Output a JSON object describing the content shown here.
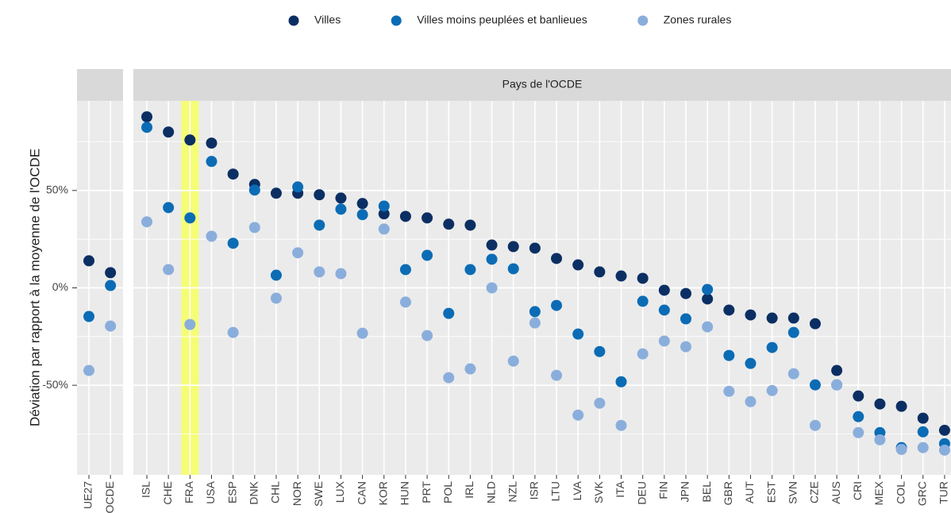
{
  "chart_data": {
    "type": "dot",
    "ylabel": "Déviation par rapport à la moyenne de l'OCDE",
    "ylim": [
      -96,
      96
    ],
    "yticks": [
      {
        "value": -50,
        "label": "-50%"
      },
      {
        "value": 0,
        "label": "0%"
      },
      {
        "value": 50,
        "label": "50%"
      }
    ],
    "minor_yticks": [
      -75,
      -25,
      25,
      75
    ],
    "grid": true,
    "legend_position": "top",
    "highlight": "FRA",
    "highlight_color": "#f6ff6a",
    "series": [
      {
        "name": "Villes",
        "color": "#0b2f63"
      },
      {
        "name": "Villes moins peuplées et banlieues",
        "color": "#0b6cb5"
      },
      {
        "name": "Zones rurales",
        "color": "#8aaedc"
      }
    ],
    "facets": [
      {
        "categories": [
          "UE27",
          "OCDE"
        ],
        "values": [
          [
            13.9,
            7.8
          ],
          [
            -14.7,
            1.2
          ],
          [
            -42.4,
            -19.6
          ]
        ]
      },
      {
        "title": "Pays de l'OCDE",
        "categories": [
          "ISL",
          "CHE",
          "FRA",
          "USA",
          "ESP",
          "DNK",
          "CHL",
          "NOR",
          "SWE",
          "LUX",
          "CAN",
          "KOR",
          "HUN",
          "PRT",
          "POL",
          "IRL",
          "NLD",
          "NZL",
          "ISR",
          "LTU",
          "LVA",
          "SVK",
          "ITA",
          "DEU",
          "FIN",
          "JPN",
          "BEL",
          "GBR",
          "AUT",
          "EST",
          "SVN",
          "CZE",
          "AUS",
          "CRI",
          "MEX",
          "COL",
          "GRC",
          "TUR"
        ],
        "values": [
          [
            87.8,
            80,
            75.9,
            74.3,
            58.4,
            53.1,
            48.6,
            48.6,
            47.8,
            46.1,
            43.3,
            38,
            36.7,
            35.9,
            32.7,
            32.2,
            22,
            21.2,
            20.4,
            15.1,
            11.8,
            8.2,
            6.1,
            4.9,
            -1.2,
            -2.9,
            -5.7,
            -11.4,
            -13.9,
            -15.5,
            -15.5,
            -18.4,
            -42.4,
            -55.5,
            -59.6,
            -60.8,
            -66.9,
            -73.1
          ],
          [
            82.4,
            41.2,
            35.9,
            64.9,
            22.9,
            50.2,
            6.5,
            51.8,
            32.2,
            40.4,
            37.6,
            42,
            9.4,
            16.7,
            -13.1,
            9.4,
            14.7,
            9.8,
            -12.2,
            -9,
            -23.7,
            -32.7,
            -48.2,
            -6.9,
            -11.4,
            -15.9,
            -0.8,
            -34.7,
            -38.8,
            -30.6,
            -22.9,
            -49.8,
            -49.8,
            -66.1,
            -74.3,
            -82,
            -73.9,
            -80
          ],
          [
            33.9,
            9.4,
            -18.8,
            26.5,
            -22.9,
            31,
            -5.3,
            18,
            8.2,
            7.3,
            -23.3,
            30.2,
            -7.3,
            -24.5,
            -46.1,
            -41.6,
            0,
            -37.6,
            -18,
            -44.9,
            -65.3,
            -59.2,
            -70.6,
            -33.9,
            -27.3,
            -30.2,
            -20,
            -53.1,
            -58.4,
            -52.7,
            -44.1,
            -70.6,
            -49.8,
            -74.3,
            -78,
            -82.9,
            -82,
            -83.3
          ]
        ]
      }
    ]
  }
}
